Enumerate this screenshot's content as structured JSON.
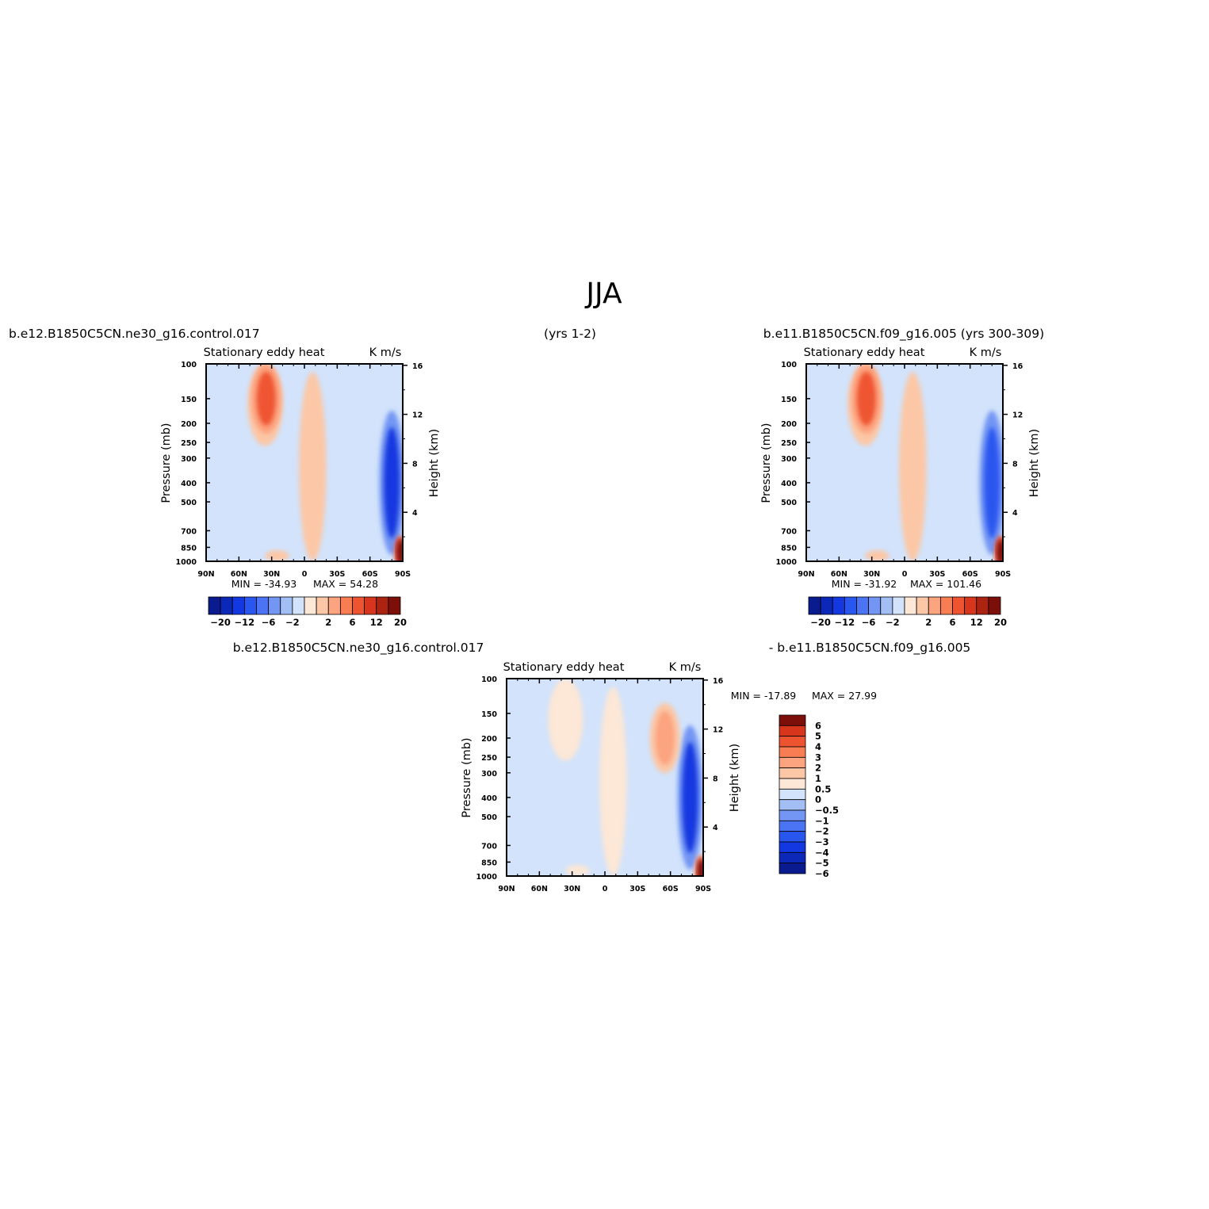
{
  "figure": {
    "title": "JJA",
    "top_left_label": "b.e12.B1850C5CN.ne30_g16.control.017",
    "top_center_label": "(yrs 1-2)",
    "top_right_label": "b.e11.B1850C5CN.f09_g16.005 (yrs 300-309)",
    "diff_left_label": "b.e12.B1850C5CN.ne30_g16.control.017",
    "diff_right_label": "- b.e11.B1850C5CN.f09_g16.005"
  },
  "chart_data": [
    {
      "type": "heatmap",
      "panel": "ne30 control",
      "subtitle": "Stationary eddy heat",
      "units": "K m/s",
      "ylabel": "Pressure (mb)",
      "ylabel_right": "Height (km)",
      "x_ticks": [
        "90N",
        "60N",
        "30N",
        "0",
        "30S",
        "60S",
        "90S"
      ],
      "y_ticks": [
        "100",
        "150",
        "200",
        "250",
        "300",
        "400",
        "500",
        "700",
        "850",
        "1000"
      ],
      "y_right_ticks": [
        "4",
        "8",
        "12",
        "16"
      ],
      "xlim": [
        90,
        -90
      ],
      "ylim": [
        1000,
        100
      ],
      "y_scale": "log",
      "min_label": "MIN = -34.93",
      "max_label": "MAX = 54.28",
      "min": -34.93,
      "max": 54.28,
      "colorbar_levels": [
        -20,
        -16,
        -12,
        -9,
        -6,
        -4,
        -2,
        -1,
        1,
        2,
        4,
        6,
        9,
        12,
        16,
        20
      ],
      "colorbar_labels": [
        "-20",
        "-12",
        "-6",
        "-2",
        "2",
        "6",
        "12",
        "20"
      ],
      "colorbar_orientation": "horizontal",
      "features": [
        {
          "lat": 35,
          "p": 150,
          "value": 8,
          "desc": "upper-tropospheric positive maximum"
        },
        {
          "lat": -80,
          "p": 400,
          "value": -12,
          "desc": "Antarctic negative column"
        },
        {
          "lat": -88,
          "p": 900,
          "value": 20,
          "desc": "near-surface positive at 90S"
        }
      ]
    },
    {
      "type": "heatmap",
      "panel": "f09 yrs 300-309",
      "subtitle": "Stationary eddy heat",
      "units": "K m/s",
      "ylabel": "Pressure (mb)",
      "ylabel_right": "Height (km)",
      "x_ticks": [
        "90N",
        "60N",
        "30N",
        "0",
        "30S",
        "60S",
        "90S"
      ],
      "y_ticks": [
        "100",
        "150",
        "200",
        "250",
        "300",
        "400",
        "500",
        "700",
        "850",
        "1000"
      ],
      "y_right_ticks": [
        "4",
        "8",
        "12",
        "16"
      ],
      "xlim": [
        90,
        -90
      ],
      "ylim": [
        1000,
        100
      ],
      "y_scale": "log",
      "min_label": "MIN = -31.92",
      "max_label": "MAX = 101.46",
      "min": -31.92,
      "max": 101.46,
      "colorbar_levels": [
        -20,
        -16,
        -12,
        -9,
        -6,
        -4,
        -2,
        -1,
        1,
        2,
        4,
        6,
        9,
        12,
        16,
        20
      ],
      "colorbar_labels": [
        "-20",
        "-12",
        "-6",
        "-2",
        "2",
        "6",
        "12",
        "20"
      ],
      "colorbar_orientation": "horizontal",
      "features": [
        {
          "lat": 35,
          "p": 150,
          "value": 8,
          "desc": "upper-tropospheric positive maximum"
        },
        {
          "lat": -80,
          "p": 400,
          "value": -10,
          "desc": "Antarctic negative column"
        },
        {
          "lat": -88,
          "p": 900,
          "value": 20,
          "desc": "near-surface positive at 90S"
        }
      ]
    },
    {
      "type": "heatmap",
      "panel": "difference",
      "subtitle": "Stationary eddy heat",
      "units": "K m/s",
      "ylabel": "Pressure (mb)",
      "ylabel_right": "Height (km)",
      "x_ticks": [
        "90N",
        "60N",
        "30N",
        "0",
        "30S",
        "60S",
        "90S"
      ],
      "y_ticks": [
        "100",
        "150",
        "200",
        "250",
        "300",
        "400",
        "500",
        "700",
        "850",
        "1000"
      ],
      "y_right_ticks": [
        "4",
        "8",
        "12",
        "16"
      ],
      "xlim": [
        90,
        -90
      ],
      "ylim": [
        1000,
        100
      ],
      "y_scale": "log",
      "min_label": "MIN = -17.89",
      "max_label": "MAX = 27.99",
      "min": -17.89,
      "max": 27.99,
      "colorbar_levels": [
        -6,
        -5,
        -4,
        -3,
        -2,
        -1,
        -0.5,
        0,
        0.5,
        1,
        2,
        3,
        4,
        5,
        6
      ],
      "colorbar_labels": [
        "6",
        "5",
        "4",
        "3",
        "2",
        "1",
        "0.5",
        "0",
        "-0.5",
        "-1",
        "-2",
        "-3",
        "-4",
        "-5",
        "-6"
      ],
      "colorbar_orientation": "vertical",
      "features": [
        {
          "lat": -78,
          "p": 400,
          "value": -4,
          "desc": "Antarctic negative column"
        },
        {
          "lat": -55,
          "p": 200,
          "value": 2,
          "desc": "positive band near 55S"
        },
        {
          "lat": -88,
          "p": 950,
          "value": 6,
          "desc": "near-surface positive at 90S"
        }
      ]
    }
  ]
}
